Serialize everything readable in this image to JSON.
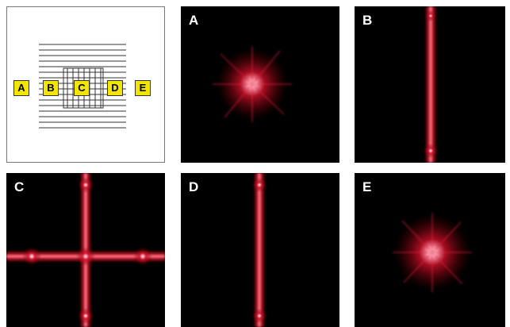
{
  "diagram": {
    "labels": [
      "A",
      "B",
      "C",
      "D",
      "E"
    ]
  },
  "panels": [
    {
      "label": "A"
    },
    {
      "label": "B"
    },
    {
      "label": "C"
    },
    {
      "label": "D"
    },
    {
      "label": "E"
    }
  ]
}
